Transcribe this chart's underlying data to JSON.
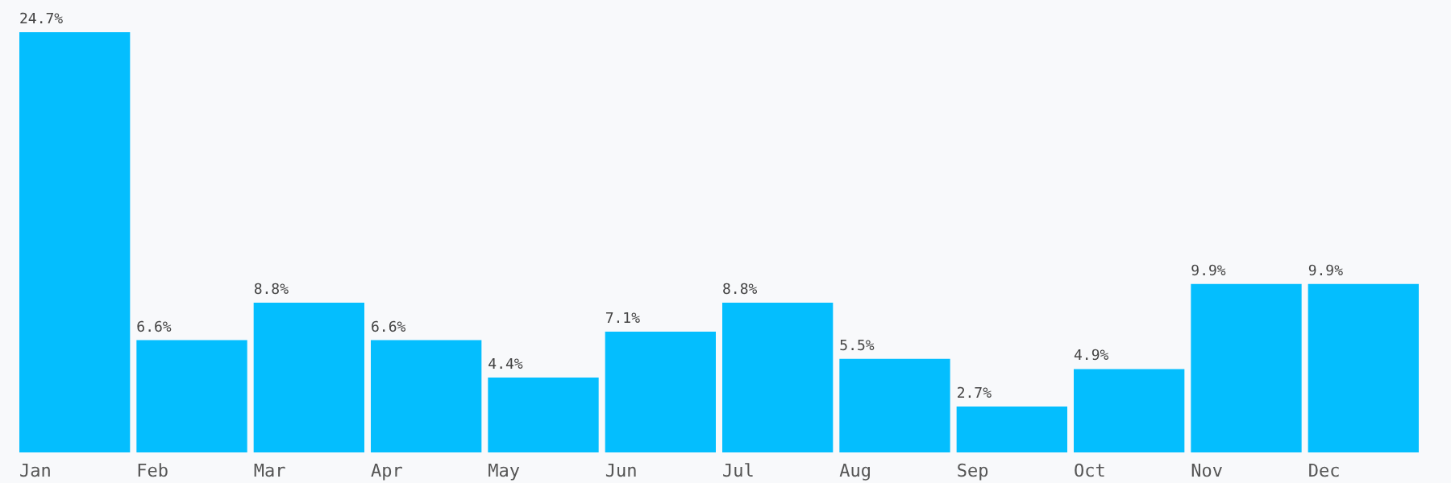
{
  "chart_data": {
    "type": "bar",
    "categories": [
      "Jan",
      "Feb",
      "Mar",
      "Apr",
      "May",
      "Jun",
      "Jul",
      "Aug",
      "Sep",
      "Oct",
      "Nov",
      "Dec"
    ],
    "values": [
      24.7,
      6.6,
      8.8,
      6.6,
      4.4,
      7.1,
      8.8,
      5.5,
      2.7,
      4.9,
      9.9,
      9.9
    ],
    "value_labels": [
      "24.7%",
      "6.6%",
      "8.8%",
      "6.6%",
      "4.4%",
      "7.1%",
      "8.8%",
      "5.5%",
      "2.7%",
      "4.9%",
      "9.9%",
      "9.9%"
    ],
    "color": "#04befe",
    "grid": false
  }
}
